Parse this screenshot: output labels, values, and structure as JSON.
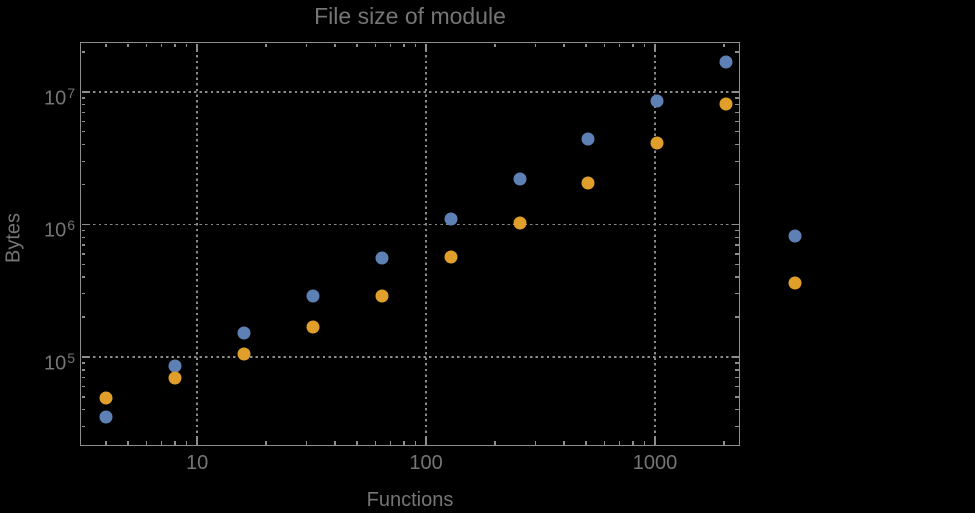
{
  "window": {
    "background": "#000000"
  },
  "chart_data": {
    "type": "scatter",
    "title": "File size of module",
    "xlabel": "Functions",
    "ylabel": "Bytes",
    "x_scale": "log",
    "y_scale": "log",
    "grid": "dotted",
    "legend": "none",
    "x": [
      4,
      8,
      16,
      32,
      64,
      128,
      256,
      512,
      1024,
      2048,
      4096
    ],
    "series": [
      {
        "name": "blue-series",
        "color": "#5e81b5",
        "values": [
          35000,
          86000,
          152000,
          290000,
          560000,
          1100000,
          2200000,
          4400000,
          8550000,
          16800000,
          820000
        ]
      },
      {
        "name": "orange-series",
        "color": "#e09e2a",
        "values": [
          49000,
          70000,
          105000,
          168000,
          290000,
          570000,
          1030000,
          2060000,
          4120000,
          8100000,
          360000
        ]
      }
    ],
    "xlim": [
      3.08,
      2350
    ],
    "ylim": [
      21300,
      23800000
    ],
    "xticks": [
      {
        "value": 10,
        "label": "10"
      },
      {
        "value": 100,
        "label": "100"
      },
      {
        "value": 1000,
        "label": "1000"
      }
    ],
    "yticks": [
      {
        "value": 100000,
        "base": "10",
        "exponent": "5"
      },
      {
        "value": 1000000,
        "base": "10",
        "exponent": "6"
      },
      {
        "value": 10000000,
        "base": "10",
        "exponent": "7"
      }
    ],
    "colors": {
      "background": "#000000",
      "text": "#757575",
      "frame": "#8d8d8d",
      "grid": "#8a8a8a",
      "point_blue": "#5e81b5",
      "point_orange": "#e09e2a"
    }
  }
}
